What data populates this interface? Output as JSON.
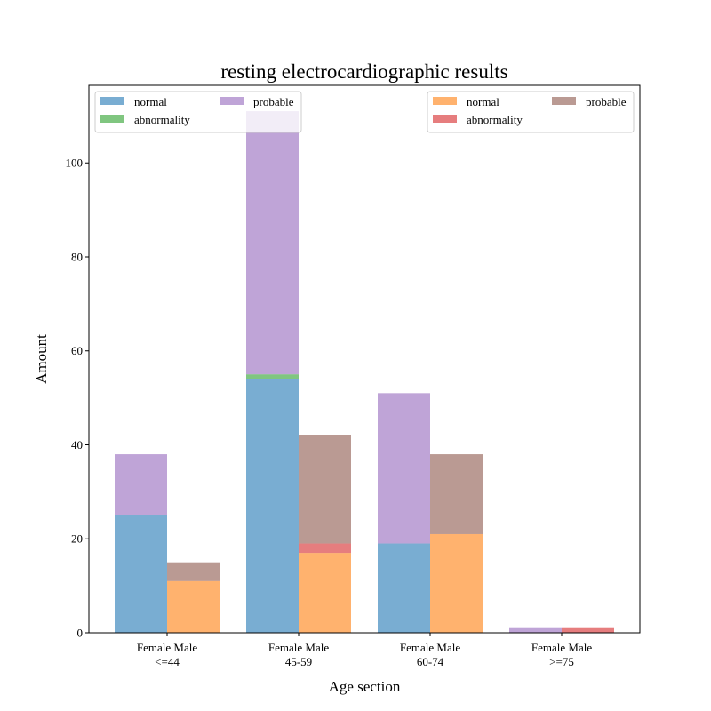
{
  "chart_data": {
    "type": "bar",
    "title": "resting electrocardiographic results",
    "xlabel": "Age section",
    "ylabel": "Amount",
    "ylim": [
      0,
      116.5
    ],
    "yticks": [
      0,
      20,
      40,
      60,
      80,
      100
    ],
    "grid": false,
    "categories": [
      {
        "line1": "Female Male",
        "line2": "<=44"
      },
      {
        "line1": "Female Male",
        "line2": "45-59"
      },
      {
        "line1": "Female Male",
        "line2": "60-74"
      },
      {
        "line1": "Female Male",
        "line2": ">=75"
      }
    ],
    "groups": [
      {
        "name": "Female",
        "legend_position": "top-left",
        "series": [
          {
            "name": "normal",
            "color": "#1f77b4",
            "values": [
              25,
              54,
              19,
              0
            ]
          },
          {
            "name": "abnormality",
            "color": "#2ca02c",
            "values": [
              0,
              1,
              0,
              0
            ]
          },
          {
            "name": "probable",
            "color": "#9467bd",
            "values": [
              13,
              56,
              32,
              1
            ]
          }
        ]
      },
      {
        "name": "Male",
        "legend_position": "top-right",
        "series": [
          {
            "name": "normal",
            "color": "#ff7f0e",
            "values": [
              11,
              17,
              21,
              0
            ]
          },
          {
            "name": "abnormality",
            "color": "#d62728",
            "values": [
              0,
              2,
              0,
              1
            ]
          },
          {
            "name": "probable",
            "color": "#8c564b",
            "values": [
              4,
              23,
              17,
              0
            ]
          }
        ]
      }
    ],
    "bar_opacity": 0.6
  }
}
